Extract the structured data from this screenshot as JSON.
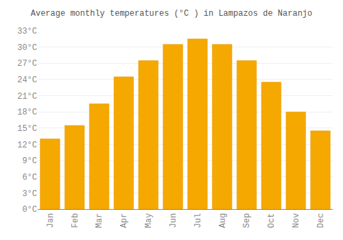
{
  "chart_data": {
    "type": "bar",
    "title": "Average monthly temperatures (°C ) in Lampazos de Naranjo",
    "categories": [
      "Jan",
      "Feb",
      "Mar",
      "Apr",
      "May",
      "Jun",
      "Jul",
      "Aug",
      "Sep",
      "Oct",
      "Nov",
      "Dec"
    ],
    "values": [
      13.0,
      15.5,
      19.5,
      24.5,
      27.5,
      30.5,
      31.5,
      30.5,
      27.5,
      23.5,
      18.0,
      14.5
    ],
    "color": "#F5A800",
    "ylim": [
      0,
      33
    ],
    "yticks": [
      {
        "value": 0,
        "label": "0°C"
      },
      {
        "value": 3,
        "label": "3°C"
      },
      {
        "value": 6,
        "label": "6°C"
      },
      {
        "value": 9,
        "label": "9°C"
      },
      {
        "value": 12,
        "label": "12°C"
      },
      {
        "value": 15,
        "label": "15°C"
      },
      {
        "value": 18,
        "label": "18°C"
      },
      {
        "value": 21,
        "label": "21°C"
      },
      {
        "value": 24,
        "label": "24°C"
      },
      {
        "value": 27,
        "label": "27°C"
      },
      {
        "value": 30,
        "label": "30°C"
      },
      {
        "value": 33,
        "label": "33°C"
      }
    ],
    "grid": true
  }
}
